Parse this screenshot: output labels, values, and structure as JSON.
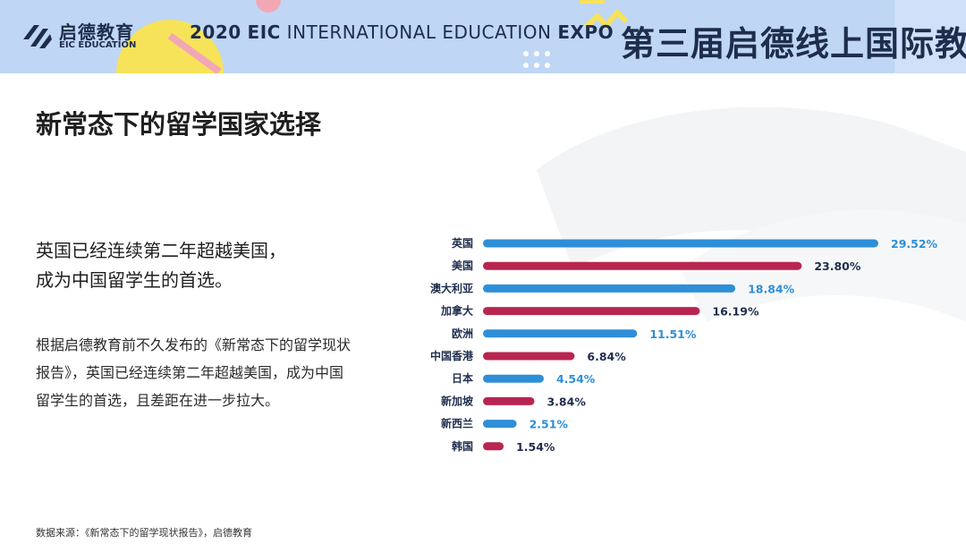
{
  "header": {
    "logo_cn": "启德教育",
    "logo_en": "EIC EDUCATION",
    "expo_year": "2020",
    "expo_eic": "EIC",
    "expo_middle": "INTERNATIONAL EDUCATION",
    "expo_end": "EXPO",
    "banner_cn": "第三届启德线上国际教育展"
  },
  "main": {
    "title": "新常态下的留学国家选择",
    "lead_line1": "英国已经连续第二年超越美国，",
    "lead_line2": "成为中国留学生的首选。",
    "body_line1": "根据启德教育前不久发布的《新常态下的留学现状",
    "body_line2": "报告》，英国已经连续第二年超越美国，成为中国",
    "body_line3": "留学生的首选，且差距在进一步拉大。",
    "source": "数据来源：《新常态下的留学现状报告》，启德教育"
  },
  "colors": {
    "blue": "#2e8fd8",
    "red": "#b82650",
    "header_bg": "#bfd6f5",
    "text_dark": "#1f2d4d"
  },
  "chart_data": {
    "type": "bar",
    "orientation": "horizontal",
    "categories": [
      "英国",
      "美国",
      "澳大利亚",
      "加拿大",
      "欧洲",
      "中国香港",
      "日本",
      "新加坡",
      "新西兰",
      "韩国"
    ],
    "values": [
      29.52,
      23.8,
      18.84,
      16.19,
      11.51,
      6.84,
      4.54,
      3.84,
      2.51,
      1.54
    ],
    "labels": [
      "29.52%",
      "23.80%",
      "18.84%",
      "16.19%",
      "11.51%",
      "6.84%",
      "4.54%",
      "3.84%",
      "2.51%",
      "1.54%"
    ],
    "bar_colors": [
      "#2e8fd8",
      "#b82650",
      "#2e8fd8",
      "#b82650",
      "#2e8fd8",
      "#b82650",
      "#2e8fd8",
      "#b82650",
      "#2e8fd8",
      "#b82650"
    ],
    "xlim": [
      0,
      29.52
    ],
    "grid": false,
    "legend": "none"
  }
}
